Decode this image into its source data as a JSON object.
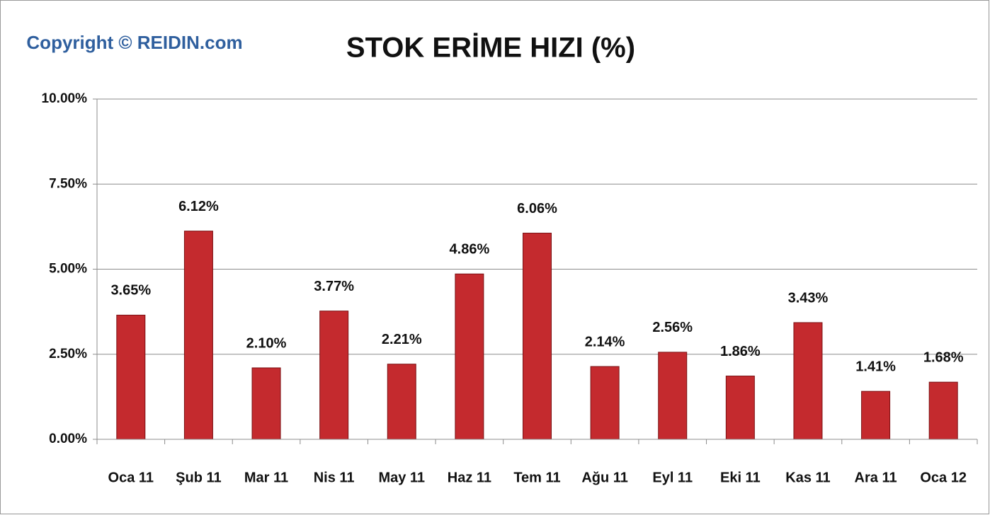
{
  "chart_data": {
    "type": "bar",
    "title": "STOK ERİME HIZI (%)",
    "annotation": "Copyright © REIDIN.com",
    "categories": [
      "Oca 11",
      "Şub 11",
      "Mar 11",
      "Nis 11",
      "May 11",
      "Haz 11",
      "Tem 11",
      "Ağu 11",
      "Eyl 11",
      "Eki 11",
      "Kas 11",
      "Ara 11",
      "Oca 12"
    ],
    "values": [
      3.65,
      6.12,
      2.1,
      3.77,
      2.21,
      4.86,
      6.06,
      2.14,
      2.56,
      1.86,
      3.43,
      1.41,
      1.68
    ],
    "value_labels": [
      "3.65%",
      "6.12%",
      "2.10%",
      "3.77%",
      "2.21%",
      "4.86%",
      "6.06%",
      "2.14%",
      "2.56%",
      "1.86%",
      "3.43%",
      "1.41%",
      "1.68%"
    ],
    "color": "#c42a2e",
    "ylim": [
      0,
      10
    ],
    "yticks": [
      {
        "value": 0,
        "label": "0.00%"
      },
      {
        "value": 2.5,
        "label": "2.50%"
      },
      {
        "value": 5,
        "label": "5.00%"
      },
      {
        "value": 7.5,
        "label": "7.50%"
      },
      {
        "value": 10,
        "label": "10.00%"
      }
    ],
    "grid": true
  }
}
